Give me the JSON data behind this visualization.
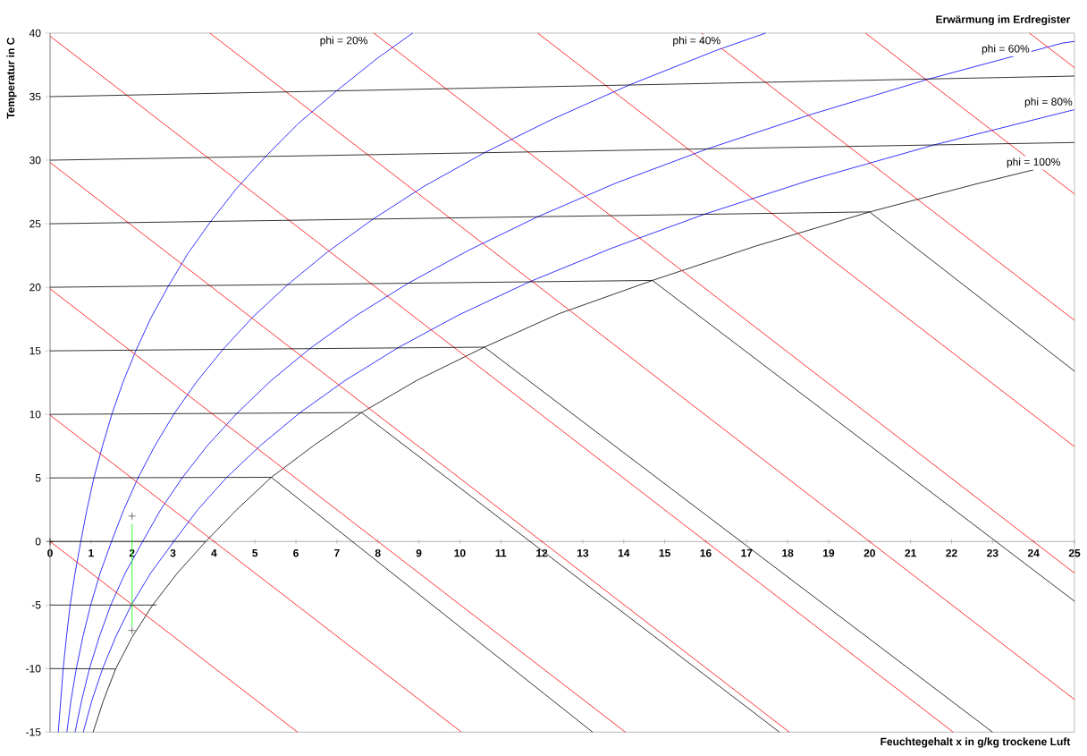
{
  "chart_data": {
    "type": "line",
    "xlabel": "Feuchtegehalt x in g/kg trockene Luft",
    "ylabel": "Temperatur in C",
    "annotations": [
      "Erwärmung im Erdregister"
    ],
    "xlim": [
      0,
      25
    ],
    "ylim": [
      -15,
      40
    ],
    "xticks": [
      0,
      1,
      2,
      3,
      4,
      5,
      6,
      7,
      8,
      9,
      10,
      11,
      12,
      13,
      14,
      15,
      16,
      17,
      18,
      19,
      20,
      21,
      22,
      23,
      24,
      25
    ],
    "yticks": [
      -15,
      -10,
      -5,
      0,
      5,
      10,
      15,
      20,
      25,
      30,
      35,
      40
    ],
    "marker": "none",
    "series": [
      {
        "name": "phi = 20%",
        "color": "#0000ff",
        "x": [
          0.2,
          0.26,
          0.32,
          0.4,
          0.49,
          0.61,
          0.75,
          0.9,
          1.07,
          1.28,
          1.51,
          1.78,
          2.1,
          2.46,
          2.89,
          3.36,
          3.92,
          4.54,
          5.26,
          6.05,
          6.99,
          8.0,
          8.85
        ],
        "values": [
          -15,
          -12.51,
          -10.01,
          -7.51,
          -5.0,
          -2.5,
          0,
          2.5,
          5.01,
          7.52,
          10.03,
          12.54,
          15.06,
          17.58,
          20.11,
          22.64,
          25.18,
          27.73,
          30.29,
          32.86,
          35.45,
          38.05,
          40
        ]
      },
      {
        "name": "phi = 40%",
        "color": "#0000ff",
        "x": [
          0.41,
          0.51,
          0.64,
          0.8,
          0.99,
          1.22,
          1.5,
          1.8,
          2.15,
          2.56,
          3.03,
          3.58,
          4.22,
          4.95,
          5.8,
          6.77,
          7.88,
          9.14,
          10.6,
          12.27,
          14.13,
          16.25,
          17.46
        ],
        "values": [
          -15,
          -12.51,
          -10.01,
          -7.51,
          -5.01,
          -2.51,
          0,
          2.51,
          5.02,
          7.54,
          10.06,
          12.58,
          15.12,
          17.66,
          20.21,
          22.78,
          25.36,
          27.97,
          30.59,
          33.24,
          35.91,
          38.63,
          40
        ]
      },
      {
        "name": "phi = 60%",
        "color": "#0000ff",
        "x": [
          0.61,
          0.77,
          0.96,
          1.2,
          1.48,
          1.83,
          2.26,
          2.7,
          3.23,
          3.84,
          4.56,
          5.38,
          6.34,
          7.45,
          8.74,
          10.22,
          11.9,
          13.81,
          16.04,
          18.59,
          21.45,
          24.7,
          25
        ],
        "values": [
          -15,
          -12.52,
          -10.02,
          -7.52,
          -5.01,
          -2.51,
          0,
          2.51,
          5.03,
          7.55,
          10.08,
          12.62,
          15.18,
          17.74,
          20.32,
          22.92,
          25.55,
          28.2,
          30.89,
          33.62,
          36.39,
          39.21,
          39.35
        ]
      },
      {
        "name": "phi = 80%",
        "color": "#0000ff",
        "x": [
          0.81,
          1.02,
          1.28,
          1.6,
          1.98,
          2.45,
          3.02,
          3.61,
          4.31,
          5.14,
          6.09,
          7.2,
          8.49,
          9.97,
          11.7,
          13.7,
          15.96,
          18.56,
          21.57,
          25
        ],
        "values": [
          -15,
          -12.52,
          -10.02,
          -7.52,
          -5.02,
          -2.51,
          0,
          2.52,
          5.04,
          7.57,
          10.11,
          12.67,
          15.24,
          17.82,
          20.43,
          23.07,
          25.74,
          28.45,
          31.2,
          33.98
        ]
      },
      {
        "name": "phi = 100%",
        "color": "#000000",
        "x": [
          1.05,
          1.3,
          1.6,
          2.0,
          2.5,
          3.1,
          3.8,
          4.56,
          5.4,
          6.45,
          7.6,
          8.97,
          10.6,
          12.4,
          14.7,
          17.2,
          20.0,
          22.6,
          24.0
        ],
        "values": [
          -15,
          -12.53,
          -10.03,
          -7.53,
          -5.02,
          -2.51,
          0,
          2.52,
          5.05,
          7.59,
          10.14,
          12.71,
          15.29,
          17.9,
          20.54,
          23.22,
          25.93,
          28.13,
          29.24
        ]
      },
      {
        "color": "#ff0000",
        "x": [
          0,
          6.04
        ],
        "values": [
          0,
          -15
        ]
      },
      {
        "color": "#ff0000",
        "x": [
          0,
          10.04
        ],
        "values": [
          9.94,
          -15
        ]
      },
      {
        "color": "#ff0000",
        "x": [
          0,
          14.04
        ],
        "values": [
          19.88,
          -15
        ]
      },
      {
        "color": "#ff0000",
        "x": [
          0,
          18.04
        ],
        "values": [
          29.82,
          -15
        ]
      },
      {
        "color": "#ff0000",
        "x": [
          0,
          22.04
        ],
        "values": [
          39.76,
          -15
        ]
      },
      {
        "color": "#ff0000",
        "x": [
          3.9,
          25
        ],
        "values": [
          40,
          -12.43
        ]
      },
      {
        "color": "#ff0000",
        "x": [
          7.9,
          25
        ],
        "values": [
          40,
          -2.49
        ]
      },
      {
        "color": "#ff0000",
        "x": [
          11.9,
          25
        ],
        "values": [
          40,
          7.46
        ]
      },
      {
        "color": "#ff0000",
        "x": [
          15.9,
          25
        ],
        "values": [
          40,
          17.4
        ]
      },
      {
        "color": "#ff0000",
        "x": [
          19.9,
          25
        ],
        "values": [
          40,
          27.34
        ]
      },
      {
        "color": "#ff0000",
        "x": [
          23.9,
          25
        ],
        "values": [
          40,
          37.28
        ]
      },
      {
        "color": "#000000",
        "x": [
          0,
          1.6
        ],
        "values": [
          -10,
          -10.03
        ]
      },
      {
        "color": "#000000",
        "x": [
          0,
          2.6
        ],
        "values": [
          -5,
          -5
        ]
      },
      {
        "color": "#000000",
        "x": [
          0,
          3.8
        ],
        "values": [
          0,
          0
        ]
      },
      {
        "color": "#000000",
        "x": [
          0,
          5.4,
          13.24
        ],
        "values": [
          5,
          5.05,
          -15
        ]
      },
      {
        "color": "#000000",
        "x": [
          0,
          7.6,
          17.8
        ],
        "values": [
          10,
          10.14,
          -15
        ]
      },
      {
        "color": "#000000",
        "x": [
          0,
          10.6,
          23.0
        ],
        "values": [
          15,
          15.29,
          -15
        ]
      },
      {
        "color": "#000000",
        "x": [
          0,
          14.7,
          25
        ],
        "values": [
          20,
          20.54,
          -4.7
        ]
      },
      {
        "color": "#000000",
        "x": [
          0,
          20.0,
          25
        ],
        "values": [
          25,
          25.93,
          13.4
        ]
      },
      {
        "color": "#000000",
        "x": [
          0,
          25
        ],
        "values": [
          30,
          31.39
        ]
      },
      {
        "color": "#000000",
        "x": [
          0,
          25
        ],
        "values": [
          35,
          36.62
        ]
      },
      {
        "color": "#00ff00",
        "x": [
          2,
          2
        ],
        "values": [
          1.4,
          -6.7
        ]
      },
      {
        "type": "scatter",
        "marker": "cross",
        "color": "#000000",
        "x": [
          0,
          2,
          2
        ],
        "values": [
          0,
          2,
          -7
        ]
      }
    ]
  }
}
